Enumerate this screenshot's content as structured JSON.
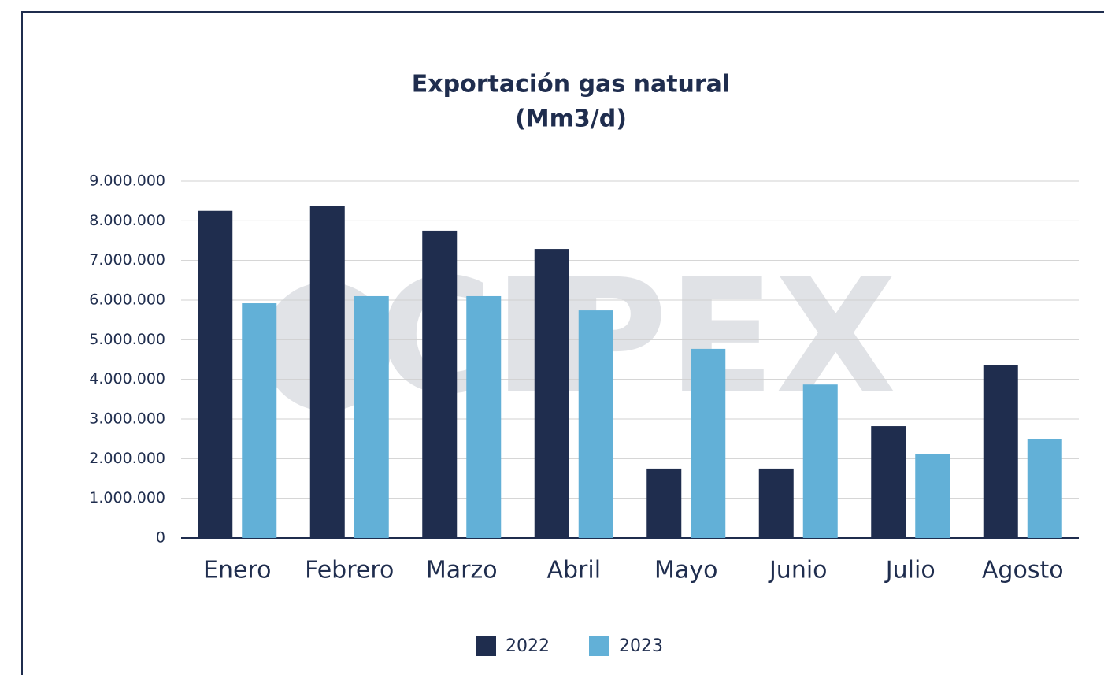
{
  "chart_data": {
    "type": "bar",
    "title": "Exportación gas natural",
    "subtitle": "(Mm3/d)",
    "watermark": "CIPEX",
    "categories": [
      "Enero",
      "Febrero",
      "Marzo",
      "Abril",
      "Mayo",
      "Junio",
      "Julio",
      "Agosto"
    ],
    "series": [
      {
        "name": "2022",
        "color": "#1f2d4e",
        "values": [
          8250000,
          8380000,
          7750000,
          7290000,
          1750000,
          1750000,
          2820000,
          4370000
        ]
      },
      {
        "name": "2023",
        "color": "#62b0d7",
        "values": [
          5920000,
          6100000,
          6100000,
          5740000,
          4770000,
          3870000,
          2110000,
          2500000
        ]
      }
    ],
    "ylim": [
      0,
      9000000
    ],
    "yticks": [
      0,
      {
        "value": 1000000,
        "label": "1.000.000"
      },
      {
        "value": 2000000,
        "label": "2.000.000"
      },
      {
        "value": 3000000,
        "label": "3.000.000"
      },
      {
        "value": 4000000,
        "label": "4.000.000"
      },
      {
        "value": 5000000,
        "label": "5.000.000"
      },
      {
        "value": 6000000,
        "label": "6.000.000"
      },
      {
        "value": 7000000,
        "label": "7.000.000"
      },
      {
        "value": 8000000,
        "label": "8.000.000"
      },
      {
        "value": 9000000,
        "label": "9.000.000"
      }
    ],
    "grid": true,
    "legend": "bottom"
  }
}
